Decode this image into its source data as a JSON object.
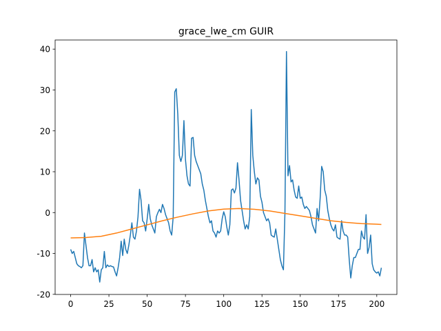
{
  "chart_data": {
    "type": "line",
    "title": "grace_lwe_cm GUIR",
    "xlim": [
      -10.15,
      213.15
    ],
    "xticks": [
      0,
      25,
      50,
      75,
      100,
      125,
      150,
      175,
      200
    ],
    "ylim": [
      -20.03,
      42.23
    ],
    "yticks": [
      -20,
      -10,
      0,
      10,
      20,
      30,
      40
    ],
    "series": [
      {
        "color": "#1f77b4",
        "x": [
          0,
          1,
          2,
          3,
          4,
          5,
          6,
          7,
          8,
          9,
          10,
          11,
          12,
          13,
          14,
          15,
          16,
          17,
          18,
          19,
          20,
          21,
          22,
          23,
          24,
          25,
          26,
          27,
          28,
          29,
          30,
          31,
          32,
          33,
          34,
          35,
          36,
          37,
          38,
          39,
          40,
          41,
          42,
          43,
          44,
          45,
          46,
          47,
          48,
          49,
          50,
          51,
          52,
          53,
          54,
          55,
          56,
          57,
          58,
          59,
          60,
          61,
          62,
          63,
          64,
          65,
          66,
          67,
          68,
          69,
          70,
          71,
          72,
          73,
          74,
          75,
          76,
          77,
          78,
          79,
          80,
          81,
          82,
          83,
          84,
          85,
          86,
          87,
          88,
          89,
          90,
          91,
          92,
          93,
          94,
          95,
          96,
          97,
          98,
          99,
          100,
          101,
          102,
          103,
          104,
          105,
          106,
          107,
          108,
          109,
          110,
          111,
          112,
          113,
          114,
          115,
          116,
          117,
          118,
          119,
          120,
          121,
          122,
          123,
          124,
          125,
          126,
          127,
          128,
          129,
          130,
          131,
          132,
          133,
          134,
          135,
          136,
          137,
          138,
          139,
          140,
          141,
          142,
          143,
          144,
          145,
          146,
          147,
          148,
          149,
          150,
          151,
          152,
          153,
          154,
          155,
          156,
          157,
          158,
          159,
          160,
          161,
          162,
          163,
          164,
          165,
          166,
          167,
          168,
          169,
          170,
          171,
          172,
          173,
          174,
          175,
          176,
          177,
          178,
          179,
          180,
          181,
          182,
          183,
          184,
          185,
          186,
          187,
          188,
          189,
          190,
          191,
          192,
          193,
          194,
          195,
          196,
          197,
          198,
          199,
          200,
          201,
          202,
          203
        ],
        "values": [
          -9,
          -10,
          -9.5,
          -11,
          -12.5,
          -13,
          -13.2,
          -13.5,
          -13,
          -5,
          -8,
          -11,
          -13,
          -13,
          -11.5,
          -14.5,
          -13.5,
          -14.5,
          -14,
          -17,
          -14,
          -13.5,
          -9.5,
          -13.5,
          -12.8,
          -13.2,
          -13,
          -13.2,
          -13.3,
          -14.5,
          -15.5,
          -13.5,
          -11,
          -7,
          -10.5,
          -6.5,
          -9,
          -10,
          -8,
          -5.5,
          -2.5,
          -6,
          -6.5,
          -4.5,
          -1,
          5.7,
          3,
          -2,
          -2.5,
          -4.5,
          -1.5,
          2,
          -1.5,
          -3,
          -4,
          -5,
          -1,
          0,
          0.8,
          0,
          2,
          1,
          -0.5,
          -1.5,
          -2.5,
          -4.5,
          -5.5,
          -1,
          29.5,
          30.3,
          24,
          14,
          12.5,
          14,
          22.5,
          13,
          9,
          7,
          6.5,
          18.2,
          18.4,
          14,
          12.5,
          11.5,
          10.5,
          9.5,
          7,
          5.5,
          3,
          1,
          -1,
          -2.5,
          -2,
          -4.5,
          -5,
          -6,
          -4.5,
          -5,
          -4.5,
          -1.5,
          0.2,
          -1,
          -3.5,
          -5.5,
          -3,
          5.5,
          5.8,
          4.8,
          6,
          12.2,
          8,
          3,
          0.5,
          -2,
          -4,
          -3,
          -4,
          -1,
          25.2,
          14,
          10,
          7,
          8.5,
          8,
          4,
          2.5,
          0,
          -1,
          -2,
          -1.5,
          -2.5,
          -5.5,
          -5.8,
          -6,
          -4,
          -6.5,
          -9,
          -11.5,
          -13,
          -14,
          0,
          39.4,
          9,
          11.5,
          7.5,
          8,
          5.5,
          3.8,
          3.5,
          6.5,
          3.5,
          3.8,
          2,
          1,
          1.5,
          1,
          0.5,
          -1,
          -3,
          -4,
          -5,
          1,
          -2,
          3.5,
          11.3,
          10,
          5.5,
          4,
          0.5,
          -1.5,
          -3,
          -4,
          -4.5,
          -3,
          -6,
          -6.3,
          -6.5,
          -2,
          -4.5,
          -5.5,
          -5.5,
          -6,
          -11.5,
          -16,
          -13,
          -11,
          -11,
          -10,
          -9,
          -9,
          -4.5,
          -6,
          -6.5,
          -0.5,
          -10,
          -8.5,
          -5.5,
          -12.5,
          -14,
          -14.5,
          -14.8,
          -14.5,
          -15.5,
          -13.5
        ]
      },
      {
        "color": "#ff7f0e",
        "x": [
          0,
          10,
          20,
          30,
          40,
          50,
          60,
          70,
          80,
          90,
          100,
          110,
          120,
          130,
          140,
          150,
          160,
          170,
          180,
          190,
          200,
          203
        ],
        "values": [
          -6.2,
          -6.1,
          -5.8,
          -5.0,
          -4.0,
          -3.0,
          -2.0,
          -1.1,
          -0.3,
          0.4,
          0.85,
          1.0,
          0.8,
          0.4,
          -0.2,
          -0.8,
          -1.4,
          -2.0,
          -2.4,
          -2.7,
          -2.85,
          -2.9
        ]
      }
    ]
  }
}
